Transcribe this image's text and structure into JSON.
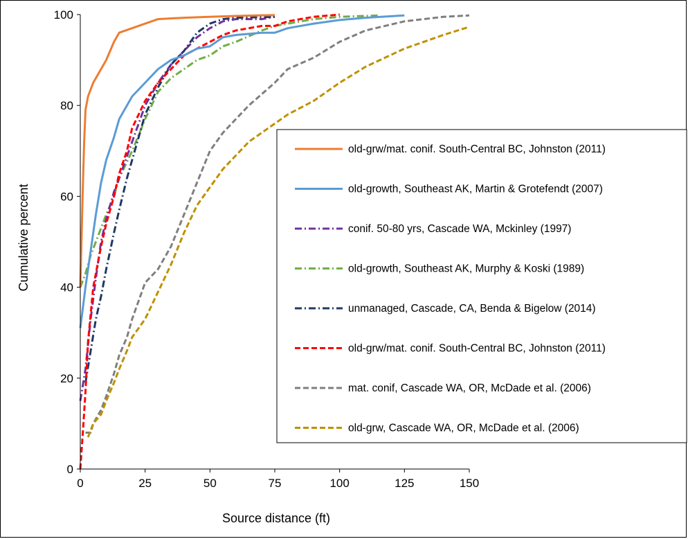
{
  "chart_data": {
    "type": "line",
    "title": "",
    "xlabel": "Source distance (ft)",
    "ylabel": "Cumulative percent",
    "xlim": [
      0,
      150
    ],
    "ylim": [
      0,
      100
    ],
    "xticks": [
      0,
      25,
      50,
      75,
      100,
      125,
      150
    ],
    "yticks": [
      0,
      20,
      40,
      60,
      80,
      100
    ],
    "grid": false,
    "legend_position": "right",
    "series": [
      {
        "name": "old-grw/mat. conif. South-Central BC, Johnston (2011)",
        "color": "#ED7D31",
        "dash": "solid",
        "points": [
          [
            0,
            40
          ],
          [
            1,
            62
          ],
          [
            1.5,
            72
          ],
          [
            2,
            79
          ],
          [
            3,
            82
          ],
          [
            5,
            85
          ],
          [
            8,
            88
          ],
          [
            10,
            90
          ],
          [
            13,
            94
          ],
          [
            15,
            96
          ],
          [
            20,
            97
          ],
          [
            25,
            98
          ],
          [
            30,
            99
          ],
          [
            40,
            99.3
          ],
          [
            50,
            99.5
          ],
          [
            60,
            99.7
          ],
          [
            75,
            99.9
          ]
        ]
      },
      {
        "name": "old-growth, Southeast AK, Martin & Grotefendt (2007)",
        "color": "#5B9BD5",
        "dash": "solid",
        "points": [
          [
            0,
            31
          ],
          [
            2,
            40
          ],
          [
            4,
            48
          ],
          [
            6,
            56
          ],
          [
            8,
            63
          ],
          [
            10,
            68
          ],
          [
            13,
            73
          ],
          [
            15,
            77
          ],
          [
            18,
            80
          ],
          [
            20,
            82
          ],
          [
            25,
            85
          ],
          [
            30,
            88
          ],
          [
            35,
            90
          ],
          [
            40,
            91
          ],
          [
            45,
            92.5
          ],
          [
            50,
            93
          ],
          [
            55,
            95
          ],
          [
            60,
            95.5
          ],
          [
            70,
            96
          ],
          [
            75,
            96
          ],
          [
            80,
            97
          ],
          [
            90,
            98
          ],
          [
            100,
            98.8
          ],
          [
            110,
            99.3
          ],
          [
            125,
            99.8
          ]
        ]
      },
      {
        "name": "conif. 50-80 yrs, Cascade WA, Mckinley (1997)",
        "color": "#7030A0",
        "dash": "dashdot",
        "points": [
          [
            0,
            15
          ],
          [
            2,
            22
          ],
          [
            4,
            33
          ],
          [
            6,
            42
          ],
          [
            8,
            50
          ],
          [
            10,
            55
          ],
          [
            13,
            61
          ],
          [
            15,
            64
          ],
          [
            20,
            72
          ],
          [
            25,
            80
          ],
          [
            30,
            85
          ],
          [
            35,
            89
          ],
          [
            40,
            92
          ],
          [
            45,
            95
          ],
          [
            50,
            97
          ],
          [
            55,
            98.5
          ],
          [
            60,
            99
          ],
          [
            70,
            99
          ],
          [
            75,
            99.5
          ]
        ]
      },
      {
        "name": "old-growth, Southeast AK, Murphy & Koski (1989)",
        "color": "#70AD47",
        "dash": "dashdot",
        "points": [
          [
            0,
            40
          ],
          [
            2,
            43
          ],
          [
            4,
            47
          ],
          [
            6,
            50
          ],
          [
            8,
            53
          ],
          [
            10,
            56
          ],
          [
            13,
            60
          ],
          [
            15,
            64
          ],
          [
            20,
            70
          ],
          [
            25,
            77
          ],
          [
            30,
            83
          ],
          [
            35,
            86
          ],
          [
            40,
            88
          ],
          [
            45,
            90
          ],
          [
            50,
            91
          ],
          [
            55,
            93
          ],
          [
            60,
            94
          ],
          [
            70,
            96.5
          ],
          [
            75,
            97.5
          ],
          [
            80,
            98
          ],
          [
            90,
            99
          ],
          [
            100,
            99.5
          ],
          [
            115,
            99.8
          ]
        ]
      },
      {
        "name": "unmanaged, Cascade, CA, Benda & Bigelow (2014)",
        "color": "#203864",
        "dash": "dashdot",
        "points": [
          [
            2,
            19
          ],
          [
            4,
            26
          ],
          [
            6,
            33
          ],
          [
            8,
            38
          ],
          [
            10,
            44
          ],
          [
            13,
            52
          ],
          [
            15,
            57
          ],
          [
            18,
            64
          ],
          [
            20,
            68
          ],
          [
            25,
            78
          ],
          [
            30,
            84
          ],
          [
            35,
            89
          ],
          [
            40,
            92
          ],
          [
            45,
            96
          ],
          [
            50,
            98
          ],
          [
            55,
            99
          ],
          [
            60,
            99.3
          ],
          [
            75,
            99.5
          ]
        ]
      },
      {
        "name": "old-grw/mat. conif. South-Central BC, Johnston (2011)",
        "color": "#FF0000",
        "dash": "dash",
        "points": [
          [
            0,
            0
          ],
          [
            1,
            8
          ],
          [
            2,
            17
          ],
          [
            3,
            28
          ],
          [
            5,
            40
          ],
          [
            8,
            49
          ],
          [
            10,
            54
          ],
          [
            13,
            60
          ],
          [
            15,
            65
          ],
          [
            18,
            70
          ],
          [
            20,
            75
          ],
          [
            25,
            81
          ],
          [
            30,
            85
          ],
          [
            35,
            88
          ],
          [
            40,
            91
          ],
          [
            45,
            92.5
          ],
          [
            50,
            94
          ],
          [
            55,
            95.5
          ],
          [
            60,
            96.5
          ],
          [
            70,
            97.5
          ],
          [
            75,
            97.5
          ],
          [
            80,
            98.5
          ],
          [
            90,
            99.5
          ],
          [
            100,
            100
          ]
        ]
      },
      {
        "name": "mat. conif, Cascade WA, OR, McDade et al. (2006)",
        "color": "#7F7F7F",
        "dash": "dash",
        "points": [
          [
            2,
            8
          ],
          [
            4,
            8
          ],
          [
            5,
            10
          ],
          [
            8,
            13
          ],
          [
            10,
            16
          ],
          [
            13,
            21
          ],
          [
            15,
            25
          ],
          [
            18,
            29
          ],
          [
            20,
            33
          ],
          [
            25,
            41
          ],
          [
            30,
            44
          ],
          [
            35,
            49
          ],
          [
            40,
            56
          ],
          [
            45,
            63
          ],
          [
            50,
            70
          ],
          [
            55,
            74
          ],
          [
            60,
            77
          ],
          [
            65,
            80
          ],
          [
            75,
            85
          ],
          [
            80,
            88
          ],
          [
            90,
            90.5
          ],
          [
            100,
            94
          ],
          [
            110,
            96.5
          ],
          [
            125,
            98.5
          ],
          [
            140,
            99.5
          ],
          [
            150,
            99.8
          ]
        ]
      },
      {
        "name": "old-grw, Cascade WA, OR, McDade et al. (2006)",
        "color": "#BF9000",
        "dash": "dash",
        "points": [
          [
            3,
            7
          ],
          [
            5,
            10
          ],
          [
            8,
            12
          ],
          [
            10,
            15
          ],
          [
            13,
            19
          ],
          [
            15,
            22
          ],
          [
            18,
            26
          ],
          [
            20,
            29
          ],
          [
            25,
            33
          ],
          [
            30,
            39
          ],
          [
            35,
            45
          ],
          [
            40,
            52
          ],
          [
            45,
            58
          ],
          [
            50,
            62
          ],
          [
            55,
            66
          ],
          [
            60,
            69
          ],
          [
            65,
            72
          ],
          [
            75,
            76
          ],
          [
            80,
            78
          ],
          [
            90,
            81
          ],
          [
            100,
            85
          ],
          [
            110,
            88.5
          ],
          [
            125,
            92.5
          ],
          [
            140,
            95.5
          ],
          [
            150,
            97.3
          ]
        ]
      }
    ]
  }
}
